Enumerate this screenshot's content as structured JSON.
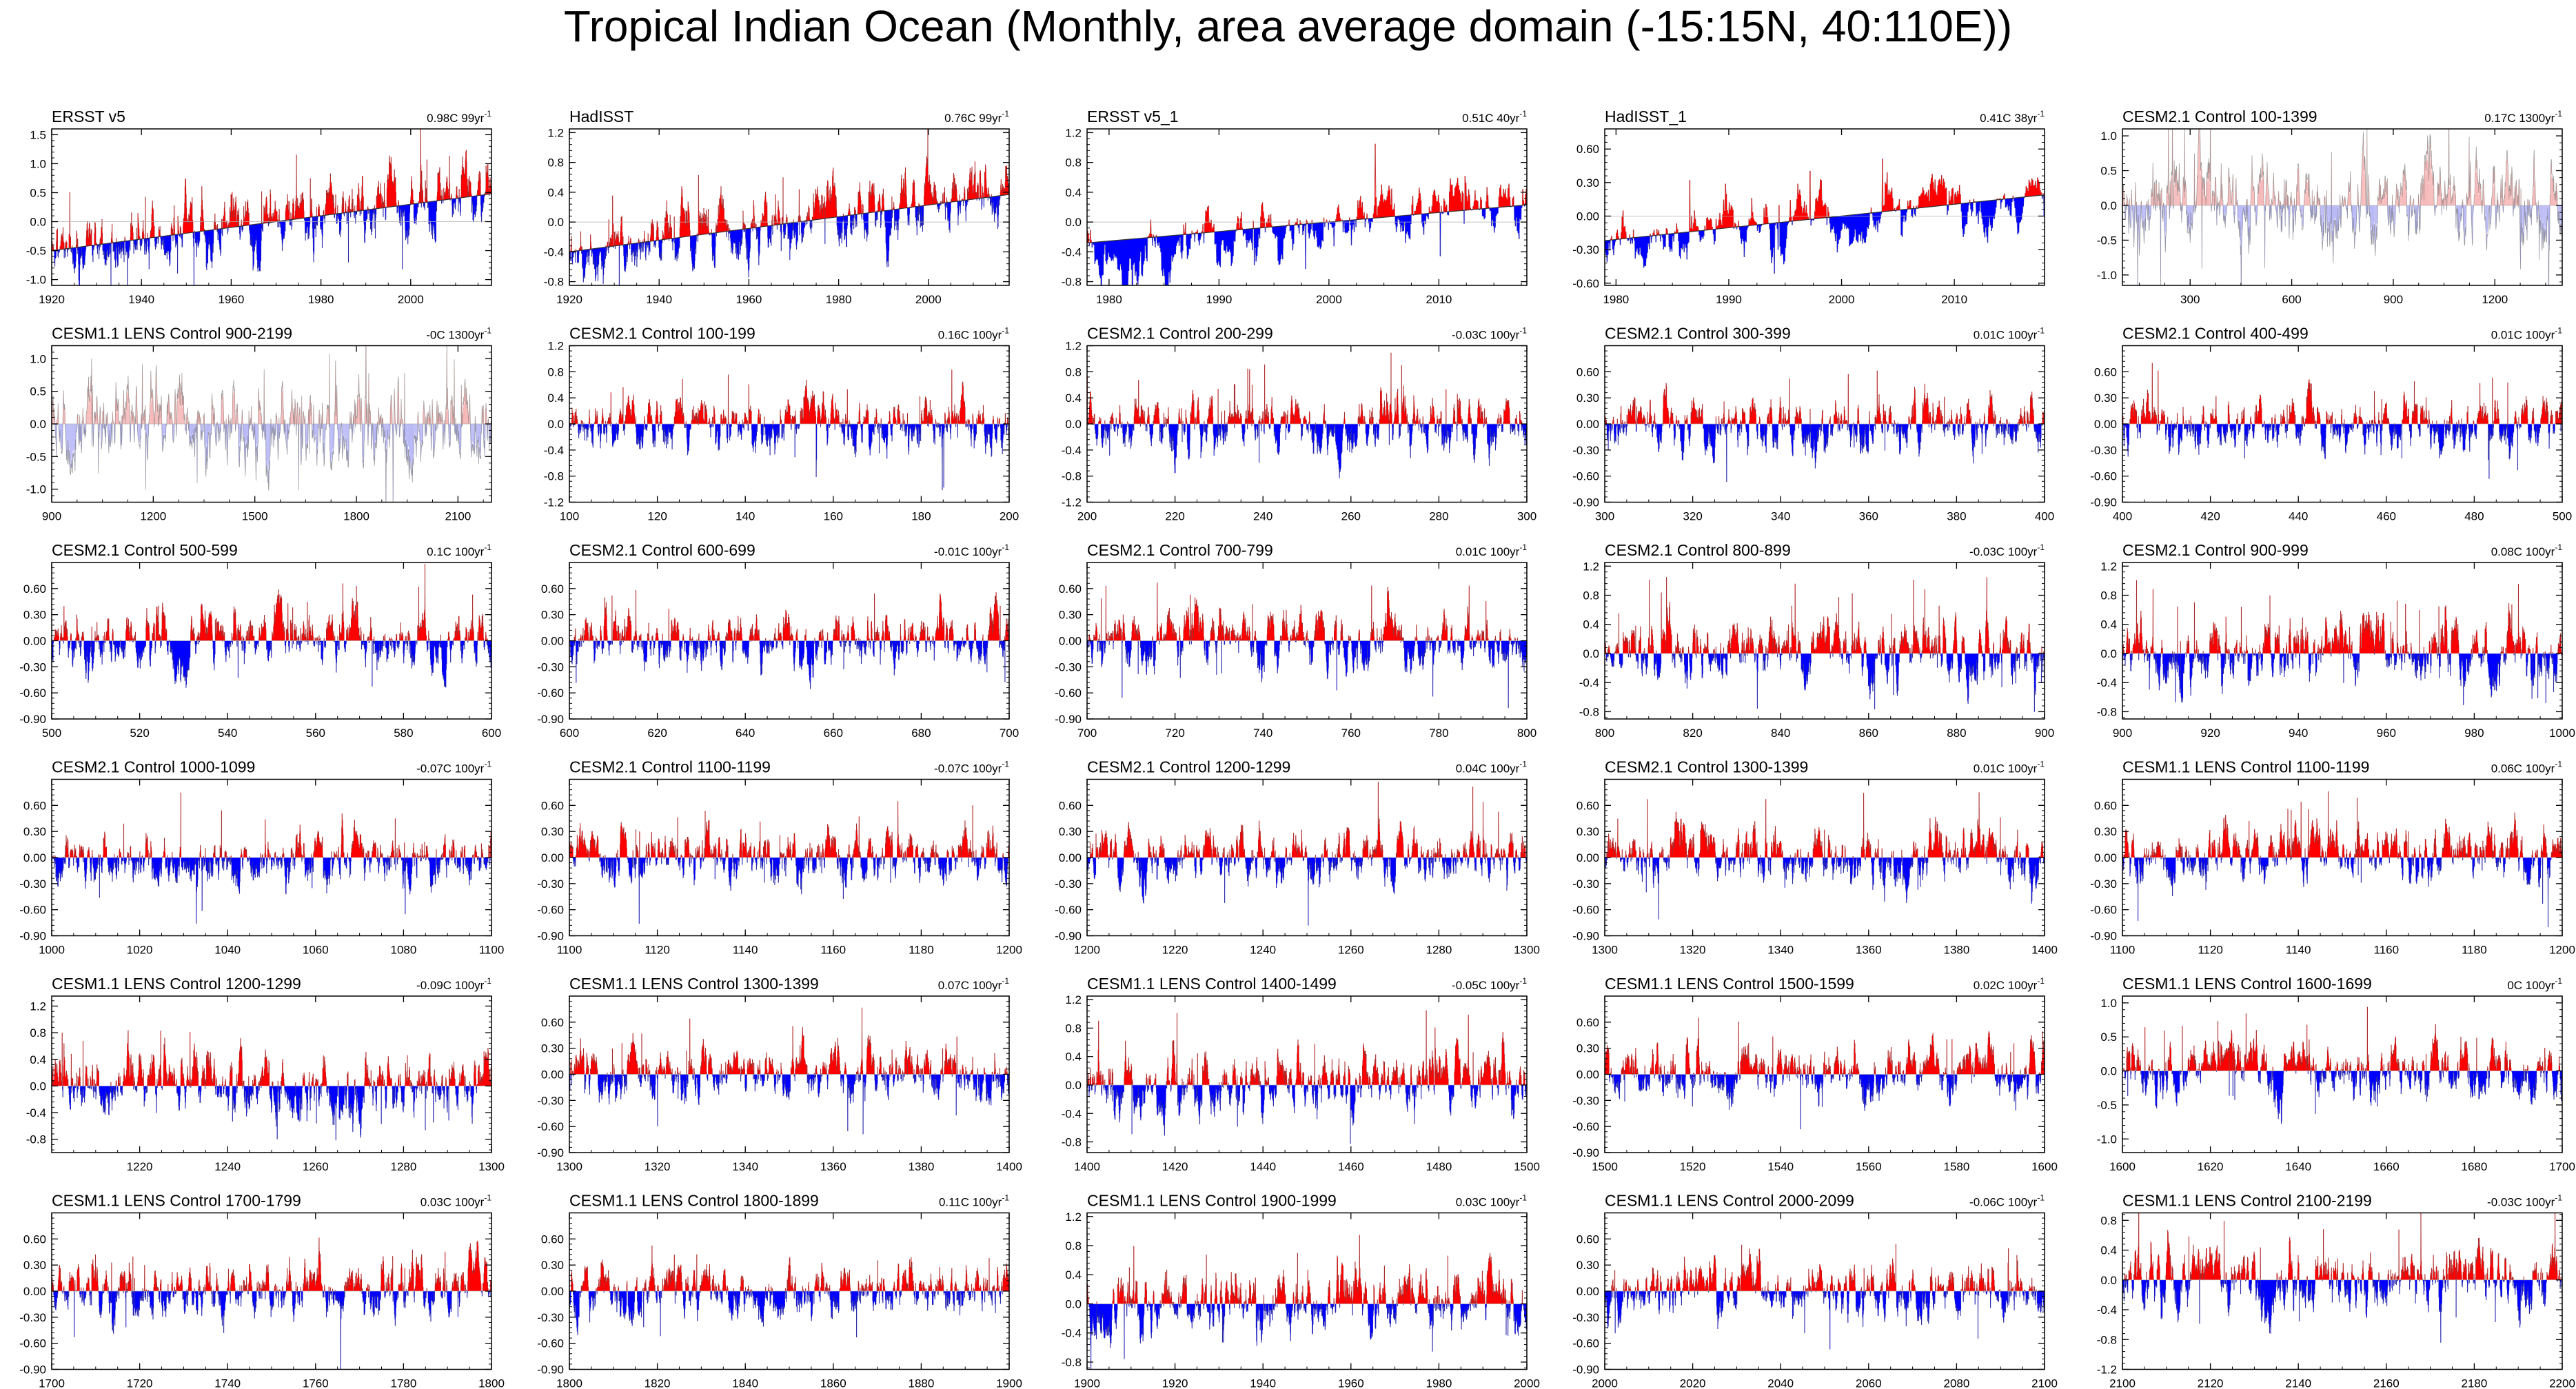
{
  "title": "Tropical Indian Ocean (Monthly, area average domain (-15:15N, 40:110E))",
  "colors": {
    "positive": "#ff0000",
    "negative": "#0000ff",
    "line": "#555555",
    "axis": "#000000",
    "zero": "#b0b0b0"
  },
  "chart_data": [
    {
      "type": "area",
      "title": "ERSST v5",
      "trend": "0.98C 99yr",
      "trend_unit_sup": "-1",
      "xlim": [
        1920,
        2018
      ],
      "xticks": [
        1920,
        1940,
        1960,
        1980,
        2000
      ],
      "ylim": [
        -1.1,
        1.6
      ],
      "yticks": [
        1.5,
        1.0,
        0.5,
        0.0,
        -0.5,
        -1.0
      ],
      "ytick_labels": [
        "1.5",
        "1.0",
        "0.5",
        "0.0",
        "-0.5",
        "-1.0"
      ],
      "trend_line": [
        -0.5,
        0.48
      ],
      "style": "trend",
      "seed": 11
    },
    {
      "type": "area",
      "title": "HadISST",
      "trend": "0.76C 99yr",
      "trend_unit_sup": "-1",
      "xlim": [
        1920,
        2018
      ],
      "xticks": [
        1920,
        1940,
        1960,
        1980,
        2000
      ],
      "ylim": [
        -0.85,
        1.25
      ],
      "yticks": [
        1.2,
        0.8,
        0.4,
        0.0,
        -0.4,
        -0.8
      ],
      "ytick_labels": [
        "1.2",
        "0.8",
        "0.4",
        "0.0",
        "-0.4",
        "-0.8"
      ],
      "trend_line": [
        -0.4,
        0.37
      ],
      "style": "trend",
      "seed": 12
    },
    {
      "type": "area",
      "title": "ERSST v5_1",
      "trend": "0.51C 40yr",
      "trend_unit_sup": "-1",
      "xlim": [
        1978,
        2018
      ],
      "xticks": [
        1980,
        1990,
        2000,
        2010
      ],
      "ylim": [
        -0.85,
        1.25
      ],
      "yticks": [
        1.2,
        0.8,
        0.4,
        0.0,
        -0.4,
        -0.8
      ],
      "ytick_labels": [
        "1.2",
        "0.8",
        "0.4",
        "0.0",
        "-0.4",
        "-0.8"
      ],
      "trend_line": [
        -0.28,
        0.23
      ],
      "style": "trend",
      "seed": 13
    },
    {
      "type": "area",
      "title": "HadISST_1",
      "trend": "0.41C 38yr",
      "trend_unit_sup": "-1",
      "xlim": [
        1979,
        2018
      ],
      "xticks": [
        1980,
        1990,
        2000,
        2010
      ],
      "ylim": [
        -0.62,
        0.78
      ],
      "yticks": [
        0.6,
        0.3,
        0.0,
        -0.3,
        -0.6
      ],
      "ytick_labels": [
        "0.60",
        "0.30",
        "0.00",
        "-0.30",
        "-0.60"
      ],
      "trend_line": [
        -0.22,
        0.19
      ],
      "style": "trend",
      "seed": 14
    },
    {
      "type": "line",
      "title": "CESM2.1 Control 100-1399",
      "trend": "0.17C 1300yr",
      "trend_unit_sup": "-1",
      "xlim": [
        100,
        1399
      ],
      "xticks": [
        300,
        600,
        900,
        1200
      ],
      "ylim": [
        -1.15,
        1.1
      ],
      "yticks": [
        1.0,
        0.5,
        0.0,
        -0.5,
        -1.0
      ],
      "ytick_labels": [
        "1.0",
        "0.5",
        "0.0",
        "-0.5",
        "-1.0"
      ],
      "style": "long",
      "seed": 15
    },
    {
      "type": "line",
      "title": "CESM1.1 LENS Control 900-2199",
      "trend": "-0C 1300yr",
      "trend_unit_sup": "-1",
      "xlim": [
        900,
        2199
      ],
      "xticks": [
        900,
        1200,
        1500,
        1800,
        2100
      ],
      "ylim": [
        -1.2,
        1.2
      ],
      "yticks": [
        1.0,
        0.5,
        0.0,
        -0.5,
        -1.0
      ],
      "ytick_labels": [
        "1.0",
        "0.5",
        "0.0",
        "-0.5",
        "-1.0"
      ],
      "style": "long",
      "seed": 16
    },
    {
      "type": "area",
      "title": "CESM2.1 Control 100-199",
      "trend": "0.16C 100yr",
      "trend_unit_sup": "-1",
      "xlim": [
        100,
        200
      ],
      "xticks": [
        100,
        120,
        140,
        160,
        180,
        200
      ],
      "ylim": [
        -1.2,
        1.2
      ],
      "yticks": [
        1.2,
        0.8,
        0.4,
        0.0,
        -0.4,
        -0.8,
        -1.2
      ],
      "ytick_labels": [
        "1.2",
        "0.8",
        "0.4",
        "0.0",
        "-0.4",
        "-0.8",
        "-1.2"
      ],
      "style": "control",
      "seed": 17
    },
    {
      "type": "area",
      "title": "CESM2.1 Control 200-299",
      "trend": "-0.03C 100yr",
      "trend_unit_sup": "-1",
      "xlim": [
        200,
        300
      ],
      "xticks": [
        200,
        220,
        240,
        260,
        280,
        300
      ],
      "ylim": [
        -1.2,
        1.2
      ],
      "yticks": [
        1.2,
        0.8,
        0.4,
        0.0,
        -0.4,
        -0.8,
        -1.2
      ],
      "ytick_labels": [
        "1.2",
        "0.8",
        "0.4",
        "0.0",
        "-0.4",
        "-0.8",
        "-1.2"
      ],
      "style": "control",
      "seed": 18
    },
    {
      "type": "area",
      "title": "CESM2.1 Control 300-399",
      "trend": "0.01C 100yr",
      "trend_unit_sup": "-1",
      "xlim": [
        300,
        400
      ],
      "xticks": [
        300,
        320,
        340,
        360,
        380,
        400
      ],
      "ylim": [
        -0.9,
        0.9
      ],
      "yticks": [
        0.6,
        0.3,
        0.0,
        -0.3,
        -0.6,
        -0.9
      ],
      "ytick_labels": [
        "0.60",
        "0.30",
        "0.00",
        "-0.30",
        "-0.60",
        "-0.90"
      ],
      "style": "control",
      "seed": 19
    },
    {
      "type": "area",
      "title": "CESM2.1 Control 400-499",
      "trend": "0.01C 100yr",
      "trend_unit_sup": "-1",
      "xlim": [
        400,
        500
      ],
      "xticks": [
        400,
        420,
        440,
        460,
        480,
        500
      ],
      "ylim": [
        -0.9,
        0.9
      ],
      "yticks": [
        0.6,
        0.3,
        0.0,
        -0.3,
        -0.6,
        -0.9
      ],
      "ytick_labels": [
        "0.60",
        "0.30",
        "0.00",
        "-0.30",
        "-0.60",
        "-0.90"
      ],
      "style": "control",
      "seed": 20
    },
    {
      "type": "area",
      "title": "CESM2.1 Control 500-599",
      "trend": "0.1C 100yr",
      "trend_unit_sup": "-1",
      "xlim": [
        500,
        600
      ],
      "xticks": [
        500,
        520,
        540,
        560,
        580,
        600
      ],
      "ylim": [
        -0.9,
        0.9
      ],
      "yticks": [
        0.6,
        0.3,
        0.0,
        -0.3,
        -0.6,
        -0.9
      ],
      "ytick_labels": [
        "0.60",
        "0.30",
        "0.00",
        "-0.30",
        "-0.60",
        "-0.90"
      ],
      "style": "control",
      "seed": 21
    },
    {
      "type": "area",
      "title": "CESM2.1 Control 600-699",
      "trend": "-0.01C 100yr",
      "trend_unit_sup": "-1",
      "xlim": [
        600,
        700
      ],
      "xticks": [
        600,
        620,
        640,
        660,
        680,
        700
      ],
      "ylim": [
        -0.9,
        0.9
      ],
      "yticks": [
        0.6,
        0.3,
        0.0,
        -0.3,
        -0.6,
        -0.9
      ],
      "ytick_labels": [
        "0.60",
        "0.30",
        "0.00",
        "-0.30",
        "-0.60",
        "-0.90"
      ],
      "style": "control",
      "seed": 22
    },
    {
      "type": "area",
      "title": "CESM2.1 Control 700-799",
      "trend": "0.01C 100yr",
      "trend_unit_sup": "-1",
      "xlim": [
        700,
        800
      ],
      "xticks": [
        700,
        720,
        740,
        760,
        780,
        800
      ],
      "ylim": [
        -0.9,
        0.9
      ],
      "yticks": [
        0.6,
        0.3,
        0.0,
        -0.3,
        -0.6,
        -0.9
      ],
      "ytick_labels": [
        "0.60",
        "0.30",
        "0.00",
        "-0.30",
        "-0.60",
        "-0.90"
      ],
      "style": "control",
      "seed": 23
    },
    {
      "type": "area",
      "title": "CESM2.1 Control 800-899",
      "trend": "-0.03C 100yr",
      "trend_unit_sup": "-1",
      "xlim": [
        800,
        900
      ],
      "xticks": [
        800,
        820,
        840,
        860,
        880,
        900
      ],
      "ylim": [
        -0.9,
        1.25
      ],
      "yticks": [
        1.2,
        0.8,
        0.4,
        0.0,
        -0.4,
        -0.8
      ],
      "ytick_labels": [
        "1.2",
        "0.8",
        "0.4",
        "0.0",
        "-0.4",
        "-0.8"
      ],
      "style": "control",
      "seed": 24
    },
    {
      "type": "area",
      "title": "CESM2.1 Control 900-999",
      "trend": "0.08C 100yr",
      "trend_unit_sup": "-1",
      "xlim": [
        900,
        1000
      ],
      "xticks": [
        900,
        920,
        940,
        960,
        980,
        1000
      ],
      "ylim": [
        -0.9,
        1.25
      ],
      "yticks": [
        1.2,
        0.8,
        0.4,
        0.0,
        -0.4,
        -0.8
      ],
      "ytick_labels": [
        "1.2",
        "0.8",
        "0.4",
        "0.0",
        "-0.4",
        "-0.8"
      ],
      "style": "control",
      "seed": 25
    },
    {
      "type": "area",
      "title": "CESM2.1 Control 1000-1099",
      "trend": "-0.07C 100yr",
      "trend_unit_sup": "-1",
      "xlim": [
        1000,
        1100
      ],
      "xticks": [
        1000,
        1020,
        1040,
        1060,
        1080,
        1100
      ],
      "ylim": [
        -0.9,
        0.9
      ],
      "yticks": [
        0.6,
        0.3,
        0.0,
        -0.3,
        -0.6,
        -0.9
      ],
      "ytick_labels": [
        "0.60",
        "0.30",
        "0.00",
        "-0.30",
        "-0.60",
        "-0.90"
      ],
      "style": "control",
      "seed": 26
    },
    {
      "type": "area",
      "title": "CESM2.1 Control 1100-1199",
      "trend": "-0.07C 100yr",
      "trend_unit_sup": "-1",
      "xlim": [
        1100,
        1200
      ],
      "xticks": [
        1100,
        1120,
        1140,
        1160,
        1180,
        1200
      ],
      "ylim": [
        -0.9,
        0.9
      ],
      "yticks": [
        0.6,
        0.3,
        0.0,
        -0.3,
        -0.6,
        -0.9
      ],
      "ytick_labels": [
        "0.60",
        "0.30",
        "0.00",
        "-0.30",
        "-0.60",
        "-0.90"
      ],
      "style": "control",
      "seed": 27
    },
    {
      "type": "area",
      "title": "CESM2.1 Control 1200-1299",
      "trend": "0.04C 100yr",
      "trend_unit_sup": "-1",
      "xlim": [
        1200,
        1300
      ],
      "xticks": [
        1200,
        1220,
        1240,
        1260,
        1280,
        1300
      ],
      "ylim": [
        -0.9,
        0.9
      ],
      "yticks": [
        0.6,
        0.3,
        0.0,
        -0.3,
        -0.6,
        -0.9
      ],
      "ytick_labels": [
        "0.60",
        "0.30",
        "0.00",
        "-0.30",
        "-0.60",
        "-0.90"
      ],
      "style": "control",
      "seed": 28
    },
    {
      "type": "area",
      "title": "CESM2.1 Control 1300-1399",
      "trend": "0.01C 100yr",
      "trend_unit_sup": "-1",
      "xlim": [
        1300,
        1400
      ],
      "xticks": [
        1300,
        1320,
        1340,
        1360,
        1380,
        1400
      ],
      "ylim": [
        -0.9,
        0.9
      ],
      "yticks": [
        0.6,
        0.3,
        0.0,
        -0.3,
        -0.6,
        -0.9
      ],
      "ytick_labels": [
        "0.60",
        "0.30",
        "0.00",
        "-0.30",
        "-0.60",
        "-0.90"
      ],
      "style": "control",
      "seed": 29
    },
    {
      "type": "area",
      "title": "CESM1.1 LENS Control 1100-1199",
      "trend": "0.06C 100yr",
      "trend_unit_sup": "-1",
      "xlim": [
        1100,
        1200
      ],
      "xticks": [
        1100,
        1120,
        1140,
        1160,
        1180,
        1200
      ],
      "ylim": [
        -0.9,
        0.9
      ],
      "yticks": [
        0.6,
        0.3,
        0.0,
        -0.3,
        -0.6,
        -0.9
      ],
      "ytick_labels": [
        "0.60",
        "0.30",
        "0.00",
        "-0.30",
        "-0.60",
        "-0.90"
      ],
      "style": "control",
      "seed": 30
    },
    {
      "type": "area",
      "title": "CESM1.1 LENS Control 1200-1299",
      "trend": "-0.09C 100yr",
      "trend_unit_sup": "-1",
      "xlim": [
        1200,
        1300
      ],
      "xticks": [
        1220,
        1240,
        1260,
        1280,
        1300
      ],
      "ylim": [
        -1.0,
        1.35
      ],
      "yticks": [
        1.2,
        0.8,
        0.4,
        0.0,
        -0.4,
        -0.8
      ],
      "ytick_labels": [
        "1.2",
        "0.8",
        "0.4",
        "0.0",
        "-0.4",
        "-0.8"
      ],
      "style": "control",
      "seed": 31
    },
    {
      "type": "area",
      "title": "CESM1.1 LENS Control 1300-1399",
      "trend": "0.07C 100yr",
      "trend_unit_sup": "-1",
      "xlim": [
        1300,
        1400
      ],
      "xticks": [
        1300,
        1320,
        1340,
        1360,
        1380,
        1400
      ],
      "ylim": [
        -0.9,
        0.9
      ],
      "yticks": [
        0.6,
        0.3,
        0.0,
        -0.3,
        -0.6,
        -0.9
      ],
      "ytick_labels": [
        "0.60",
        "0.30",
        "0.00",
        "-0.30",
        "-0.60",
        "-0.90"
      ],
      "style": "control",
      "seed": 32
    },
    {
      "type": "area",
      "title": "CESM1.1 LENS Control 1400-1499",
      "trend": "-0.05C 100yr",
      "trend_unit_sup": "-1",
      "xlim": [
        1400,
        1500
      ],
      "xticks": [
        1400,
        1420,
        1440,
        1460,
        1480,
        1500
      ],
      "ylim": [
        -0.95,
        1.25
      ],
      "yticks": [
        1.2,
        0.8,
        0.4,
        0.0,
        -0.4,
        -0.8
      ],
      "ytick_labels": [
        "1.2",
        "0.8",
        "0.4",
        "0.0",
        "-0.4",
        "-0.8"
      ],
      "style": "control",
      "seed": 33
    },
    {
      "type": "area",
      "title": "CESM1.1 LENS Control 1500-1599",
      "trend": "0.02C 100yr",
      "trend_unit_sup": "-1",
      "xlim": [
        1500,
        1600
      ],
      "xticks": [
        1500,
        1520,
        1540,
        1560,
        1580,
        1600
      ],
      "ylim": [
        -0.9,
        0.9
      ],
      "yticks": [
        0.6,
        0.3,
        0.0,
        -0.3,
        -0.6,
        -0.9
      ],
      "ytick_labels": [
        "0.60",
        "0.30",
        "0.00",
        "-0.30",
        "-0.60",
        "-0.90"
      ],
      "style": "control",
      "seed": 34
    },
    {
      "type": "area",
      "title": "CESM1.1 LENS Control 1600-1699",
      "trend": "0C 100yr",
      "trend_unit_sup": "-1",
      "xlim": [
        1600,
        1700
      ],
      "xticks": [
        1600,
        1620,
        1640,
        1660,
        1680,
        1700
      ],
      "ylim": [
        -1.2,
        1.1
      ],
      "yticks": [
        1.0,
        0.5,
        0.0,
        -0.5,
        -1.0
      ],
      "ytick_labels": [
        "1.0",
        "0.5",
        "0.0",
        "-0.5",
        "-1.0"
      ],
      "style": "control",
      "seed": 35
    },
    {
      "type": "area",
      "title": "CESM1.1 LENS Control 1700-1799",
      "trend": "0.03C 100yr",
      "trend_unit_sup": "-1",
      "xlim": [
        1700,
        1800
      ],
      "xticks": [
        1700,
        1720,
        1740,
        1760,
        1780,
        1800
      ],
      "ylim": [
        -0.9,
        0.9
      ],
      "yticks": [
        0.6,
        0.3,
        0.0,
        -0.3,
        -0.6,
        -0.9
      ],
      "ytick_labels": [
        "0.60",
        "0.30",
        "0.00",
        "-0.30",
        "-0.60",
        "-0.90"
      ],
      "style": "control",
      "seed": 36
    },
    {
      "type": "area",
      "title": "CESM1.1 LENS Control 1800-1899",
      "trend": "0.11C 100yr",
      "trend_unit_sup": "-1",
      "xlim": [
        1800,
        1900
      ],
      "xticks": [
        1800,
        1820,
        1840,
        1860,
        1880,
        1900
      ],
      "ylim": [
        -0.9,
        0.9
      ],
      "yticks": [
        0.6,
        0.3,
        0.0,
        -0.3,
        -0.6,
        -0.9
      ],
      "ytick_labels": [
        "0.60",
        "0.30",
        "0.00",
        "-0.30",
        "-0.60",
        "-0.90"
      ],
      "style": "control",
      "seed": 37
    },
    {
      "type": "area",
      "title": "CESM1.1 LENS Control 1900-1999",
      "trend": "0.03C 100yr",
      "trend_unit_sup": "-1",
      "xlim": [
        1900,
        2000
      ],
      "xticks": [
        1900,
        1920,
        1940,
        1960,
        1980,
        2000
      ],
      "ylim": [
        -0.9,
        1.25
      ],
      "yticks": [
        1.2,
        0.8,
        0.4,
        0.0,
        -0.4,
        -0.8
      ],
      "ytick_labels": [
        "1.2",
        "0.8",
        "0.4",
        "0.0",
        "-0.4",
        "-0.8"
      ],
      "style": "control",
      "seed": 38
    },
    {
      "type": "area",
      "title": "CESM1.1 LENS Control 2000-2099",
      "trend": "-0.06C 100yr",
      "trend_unit_sup": "-1",
      "xlim": [
        2000,
        2100
      ],
      "xticks": [
        2000,
        2020,
        2040,
        2060,
        2080,
        2100
      ],
      "ylim": [
        -0.9,
        0.9
      ],
      "yticks": [
        0.6,
        0.3,
        0.0,
        -0.3,
        -0.6,
        -0.9
      ],
      "ytick_labels": [
        "0.60",
        "0.30",
        "0.00",
        "-0.30",
        "-0.60",
        "-0.90"
      ],
      "style": "control",
      "seed": 39
    },
    {
      "type": "area",
      "title": "CESM1.1 LENS Control 2100-2199",
      "trend": "-0.03C 100yr",
      "trend_unit_sup": "-1",
      "xlim": [
        2100,
        2200
      ],
      "xticks": [
        2100,
        2120,
        2140,
        2160,
        2180,
        2200
      ],
      "ylim": [
        -1.2,
        0.9
      ],
      "yticks": [
        0.8,
        0.4,
        0.0,
        -0.4,
        -0.8,
        -1.2
      ],
      "ytick_labels": [
        "0.8",
        "0.4",
        "0.0",
        "-0.4",
        "-0.8",
        "-1.2"
      ],
      "style": "control",
      "seed": 40
    }
  ]
}
